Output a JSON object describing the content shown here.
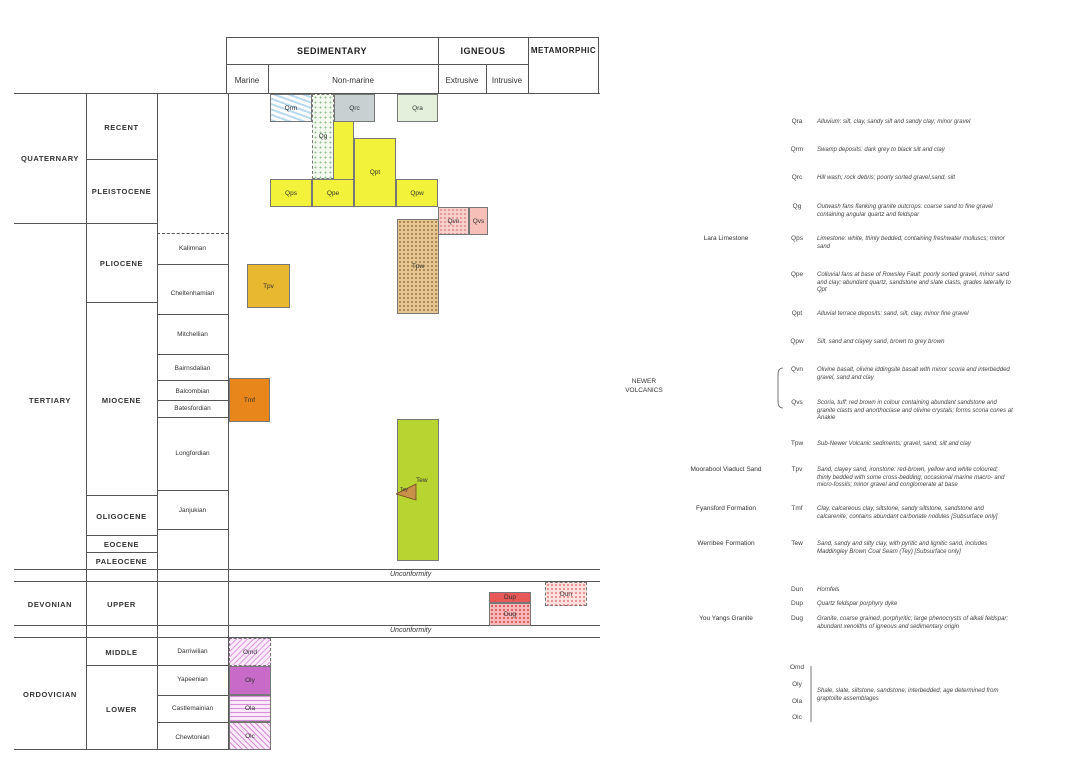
{
  "header": {
    "sedimentary": "SEDIMENTARY",
    "igneous": "IGNEOUS",
    "metamorphic": "METAMORPHIC",
    "marine": "Marine",
    "non_marine": "Non-marine",
    "extrusive": "Extrusive",
    "intrusive": "Intrusive"
  },
  "periods": {
    "quaternary": "QUATERNARY",
    "tertiary": "TERTIARY",
    "devonian": "DEVONIAN",
    "ordovician": "ORDOVICIAN"
  },
  "epochs": {
    "recent": "RECENT",
    "pleistocene": "PLEISTOCENE",
    "pliocene": "PLIOCENE",
    "miocene": "MIOCENE",
    "oligocene": "OLIGOCENE",
    "eocene": "EOCENE",
    "paleocene": "PALEOCENE",
    "upper": "UPPER",
    "middle": "MIDDLE",
    "lower": "LOWER"
  },
  "stages": {
    "kalimnan": "Kalimnan",
    "cheltenhamian": "Cheltenhamian",
    "mitchellian": "Mitchellian",
    "bairnsdalian": "Bairnsdalian",
    "balcombian": "Balcombian",
    "batesfordian": "Batesfordian",
    "longfordian": "Longfordian",
    "janjukian": "Janjukian",
    "darriwilian": "Darriwilian",
    "yapeenian": "Yapeenian",
    "castlemainian": "Castlemainian",
    "chewtonian": "Chewtonian"
  },
  "unconformity": "Unconformity",
  "units": {
    "qrm": "Qrm",
    "qrc": "Qrc",
    "qra": "Qra",
    "qg": "Qg",
    "qpt": "Qpt",
    "qps": "Qps",
    "qpe": "Qpe",
    "qpw": "Qpw",
    "qvn": "Qvn",
    "qvs": "Qvs",
    "tpw": "Tpw",
    "tpv": "Tpv",
    "tmf": "Tmf",
    "tew": "Tew",
    "tey": "Tey",
    "dup": "Dup",
    "dug": "Dug",
    "dun": "Dun",
    "omd": "Omd",
    "oly": "Oly",
    "ola": "Ola",
    "olc": "Olc"
  },
  "colors": {
    "yellow": "#f2f23a",
    "lime": "#b8d430",
    "tan": "#e6c692",
    "orange": "#e8861c",
    "ochre": "#e8b830",
    "pink": "#f4b8b8",
    "red": "#e85858",
    "magenta": "#c86ac8",
    "light_magenta": "#f2c8f2",
    "grey": "#c8d0d2",
    "pale_green": "#e4f0dc",
    "blue": "#9cc4e4"
  },
  "groups": {
    "newer_volcanics": [
      "NEWER",
      "VOLCANICS"
    ]
  },
  "legend": [
    {
      "code": "Qra",
      "formation": "",
      "desc": [
        "Alluvium: silt, clay, sandy silt and sandy clay; minor gravel"
      ]
    },
    {
      "code": "Qrm",
      "formation": "",
      "desc": [
        "Swamp deposits: dark grey to black silt and clay"
      ]
    },
    {
      "code": "Qrc",
      "formation": "",
      "desc": [
        "Hill wash; rock debris; poorly sorted gravel,sand, silt"
      ]
    },
    {
      "code": "Qg",
      "formation": "",
      "desc": [
        "Outwash fans flanking granite outcrops: coarse sand to fine gravel",
        "containing angular quartz and feldspar"
      ]
    },
    {
      "code": "Qps",
      "formation": "Lara Limestone",
      "desc": [
        "Limestone: white, thinly bedded; containing freshwater molluscs; minor",
        "sand"
      ]
    },
    {
      "code": "Qpe",
      "formation": "",
      "desc": [
        "Colluvial fans at base of Rowsley Fault: poorly sorted gravel, minor sand",
        "and clay; abundant quartz, sandstone and slate clasts, grades laterally to",
        "Qpt"
      ]
    },
    {
      "code": "Qpt",
      "formation": "",
      "desc": [
        "Alluvial terrace deposits: sand, silt, clay, minor fine gravel"
      ]
    },
    {
      "code": "Qpw",
      "formation": "",
      "desc": [
        "Silt, sand and clayey sand, brown to grey brown"
      ]
    },
    {
      "code": "Qvn",
      "formation": "",
      "desc": [
        "Olivine basalt, olivine iddingsite basalt with minor scoria and interbedded",
        "gravel, sand and clay"
      ]
    },
    {
      "code": "Qvs",
      "formation": "",
      "desc": [
        "Scoria, tuff: red brown in colour containing abundant sandstone and",
        "granite clasts and anorthoclase and olivine crystals; forms scoria cones at",
        "Anakie"
      ]
    },
    {
      "code": "Tpw",
      "formation": "",
      "desc": [
        "Sub-Newer Volcanic sediments; gravel, sand, silt and clay"
      ]
    },
    {
      "code": "Tpv",
      "formation": "Moorabool Viaduct Sand",
      "desc": [
        "Sand, clayey sand, ironstone: red-brown, yellow and white coloured;",
        "thinly bedded with some cross-bedding; occasional marine macro- and",
        "micro-fossils; minor gravel and conglomerate at base"
      ]
    },
    {
      "code": "Tmf",
      "formation": "Fyansford Formation",
      "desc": [
        "Clay, calcareous clay, siltstone, sandy siltstone, sandstone and",
        "calcarenite; contains abundant carbonate nodules  [Subsurface only]"
      ]
    },
    {
      "code": "Tew",
      "formation": "Werribee Formation",
      "desc": [
        "Sand, sandy and silty clay, with pyritic and lignitic sand, includes",
        "Maddingley Brown Coal Seam (Tey)  [Subsurface only]"
      ]
    },
    {
      "code": "Dun",
      "formation": "",
      "desc": [
        "Hornfels"
      ]
    },
    {
      "code": "Dup",
      "formation": "",
      "desc": [
        "Quartz feldspar porphyry dyke"
      ]
    },
    {
      "code": "Dug",
      "formation": "You Yangs Granite",
      "desc": [
        "Granite, coarse grained, porphyritic; large phenocrysts of alkali feldspar;",
        "abundant xenoliths of igneous and sedimentary origin"
      ]
    },
    {
      "code": "Omd",
      "formation": "",
      "desc": []
    },
    {
      "code": "Oly",
      "formation": "",
      "desc": [
        "Shale, slate, siltstone, sandstone; interbedded; age determined from",
        "graptolite assemblages"
      ]
    },
    {
      "code": "Ola",
      "formation": "",
      "desc": []
    },
    {
      "code": "Olc",
      "formation": "",
      "desc": []
    }
  ]
}
